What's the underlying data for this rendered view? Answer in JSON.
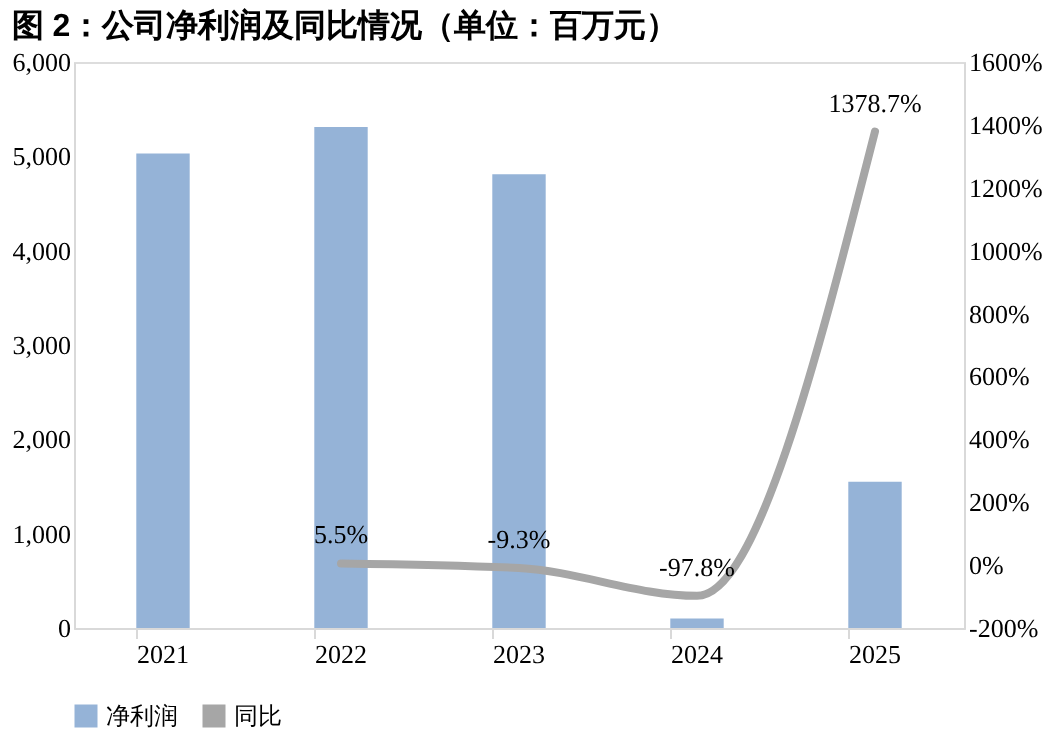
{
  "chart_data": {
    "type": "bar",
    "title": "图 2：公司净利润及同比情况（单位：百万元）",
    "categories": [
      "2021",
      "2022",
      "2023",
      "2024",
      "2025"
    ],
    "series": [
      {
        "name": "净利润",
        "type": "bar",
        "color": "#95b3d7",
        "values": [
          5030,
          5310,
          4810,
          100,
          1550
        ]
      },
      {
        "name": "同比",
        "type": "line",
        "axis": "y2",
        "color": "#a6a6a6",
        "values": [
          null,
          5.5,
          -9.3,
          -97.8,
          1378.7
        ],
        "value_labels": [
          null,
          "5.5%",
          "-9.3%",
          "-97.8%",
          "1378.7%"
        ]
      }
    ],
    "ylim": [
      0,
      6000
    ],
    "yticks": [
      {
        "value": 0,
        "label": "0"
      },
      {
        "value": 1000,
        "label": "1,000"
      },
      {
        "value": 2000,
        "label": "2,000"
      },
      {
        "value": 3000,
        "label": "3,000"
      },
      {
        "value": 4000,
        "label": "4,000"
      },
      {
        "value": 5000,
        "label": "5,000"
      },
      {
        "value": 6000,
        "label": "6,000"
      }
    ],
    "y2lim": [
      -200,
      1600
    ],
    "y2ticks": [
      {
        "value": -200,
        "label": "-200%"
      },
      {
        "value": 0,
        "label": "0%"
      },
      {
        "value": 200,
        "label": "200%"
      },
      {
        "value": 400,
        "label": "400%"
      },
      {
        "value": 600,
        "label": "600%"
      },
      {
        "value": 800,
        "label": "800%"
      },
      {
        "value": 1000,
        "label": "1000%"
      },
      {
        "value": 1200,
        "label": "1200%"
      },
      {
        "value": 1400,
        "label": "1400%"
      },
      {
        "value": 1600,
        "label": "1600%"
      }
    ],
    "grid": false,
    "legend": "bottom",
    "line_style": "solid",
    "marker": "none"
  }
}
